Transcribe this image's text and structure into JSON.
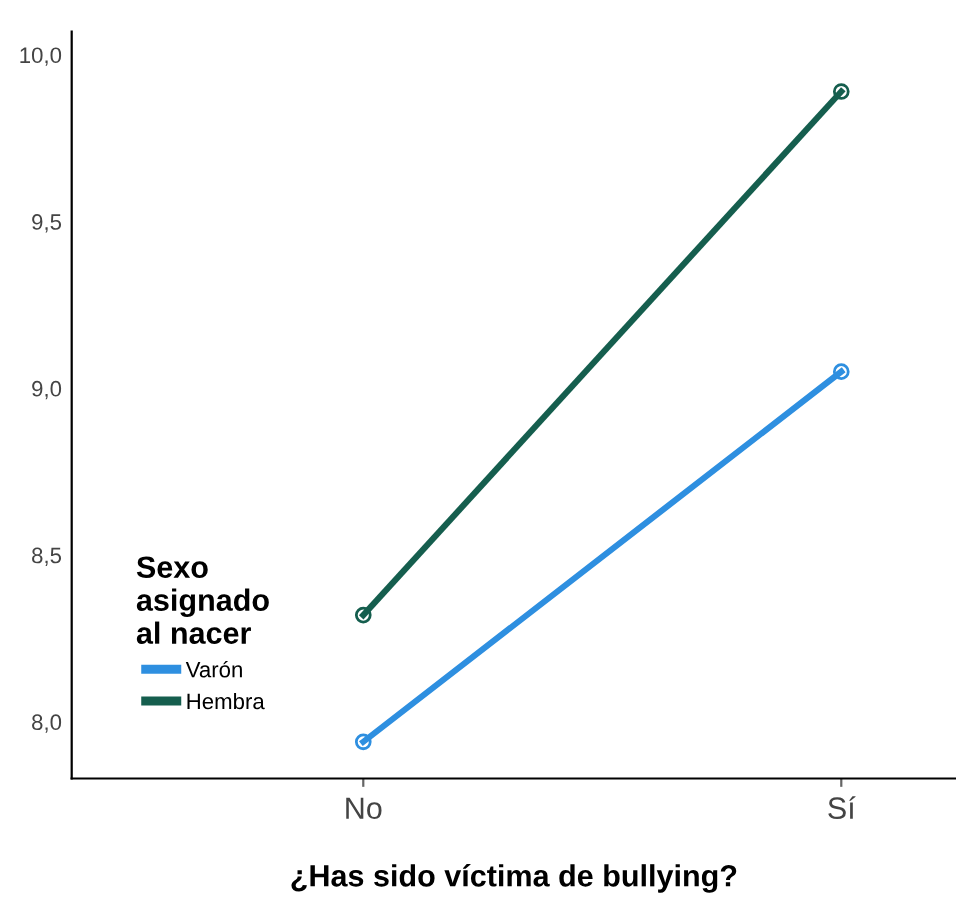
{
  "chart_data": {
    "type": "line",
    "xlabel": "¿Has sido víctima de bullying?",
    "legend_title": "Sexo\nasignado\nal nacer",
    "categories": [
      "No",
      "Sí"
    ],
    "series": [
      {
        "name": "Varón",
        "color": "#2e8fe0",
        "values": [
          7.94,
          9.05
        ]
      },
      {
        "name": "Hembra",
        "color": "#155e4e",
        "values": [
          8.32,
          9.89
        ]
      }
    ],
    "ylim": [
      7.83,
      10.07
    ],
    "yticks": [
      {
        "value": 8.0,
        "label": "8,0"
      },
      {
        "value": 8.5,
        "label": "8,5"
      },
      {
        "value": 9.0,
        "label": "9,0"
      },
      {
        "value": 9.5,
        "label": "9,5"
      },
      {
        "value": 10.0,
        "label": "10,0"
      }
    ],
    "grid": false,
    "legend": "bottom left",
    "marker": "circle",
    "line_style": "solid"
  }
}
